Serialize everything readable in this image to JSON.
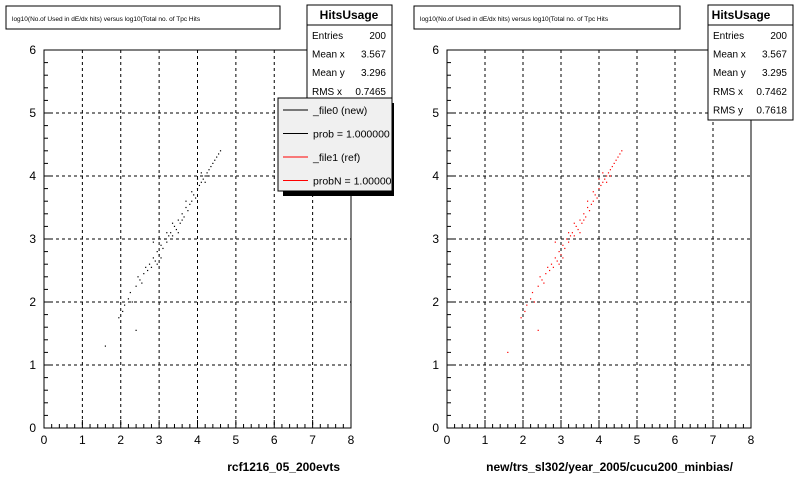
{
  "colors": {
    "series_new": "#000000",
    "series_ref": "#ff0000",
    "grid": "#000000",
    "background": "#ffffff"
  },
  "chart_data": [
    {
      "type": "scatter",
      "title": "log10(No.of Used in dE/dx hits) versus log10(Total no. of Tpc Hits",
      "xlabel": "rcf1216_05_200evts",
      "ylabel": "",
      "xlim": [
        0,
        8
      ],
      "ylim": [
        0,
        6
      ],
      "x_ticks": [
        "0",
        "1",
        "2",
        "3",
        "4",
        "5",
        "6",
        "7",
        "8"
      ],
      "y_ticks": [
        "0",
        "1",
        "2",
        "3",
        "4",
        "5",
        "6"
      ],
      "grid": true,
      "stats": {
        "name": "HitsUsage",
        "rows": [
          {
            "label": "Entries",
            "value": "200"
          },
          {
            "label": "Mean x",
            "value": "3.567"
          },
          {
            "label": "Mean y",
            "value": "3.296"
          },
          {
            "label": "RMS x",
            "value": "0.7465"
          }
        ]
      },
      "legend": {
        "placement": "top-right",
        "entries": [
          {
            "label": "_file0 (new)",
            "color": "#000000"
          },
          {
            "label": "prob = 1.000000",
            "color": "#000000"
          },
          {
            "label": "_file1 (ref)",
            "color": "#ff0000"
          },
          {
            "label": "probN = 1.000000",
            "color": "#ff0000"
          }
        ]
      },
      "series": [
        {
          "color": "#000000",
          "points": [
            [
              1.6,
              1.3
            ],
            [
              1.95,
              1.75
            ],
            [
              2.05,
              1.85
            ],
            [
              2.1,
              1.95
            ],
            [
              2.2,
              2.05
            ],
            [
              2.25,
              2.15
            ],
            [
              2.4,
              1.55
            ],
            [
              2.4,
              2.25
            ],
            [
              2.5,
              2.35
            ],
            [
              2.55,
              2.3
            ],
            [
              2.6,
              2.45
            ],
            [
              2.7,
              2.5
            ],
            [
              2.75,
              2.6
            ],
            [
              2.8,
              2.55
            ],
            [
              2.85,
              2.7
            ],
            [
              2.9,
              2.65
            ],
            [
              2.95,
              2.8
            ],
            [
              3.0,
              2.75
            ],
            [
              3.05,
              2.9
            ],
            [
              3.1,
              2.85
            ],
            [
              3.15,
              3.0
            ],
            [
              3.2,
              2.95
            ],
            [
              3.25,
              3.05
            ],
            [
              3.3,
              3.1
            ],
            [
              3.35,
              3.05
            ],
            [
              3.4,
              3.2
            ],
            [
              3.45,
              3.15
            ],
            [
              3.5,
              3.3
            ],
            [
              3.55,
              3.25
            ],
            [
              3.6,
              3.4
            ],
            [
              3.65,
              3.35
            ],
            [
              3.7,
              3.5
            ],
            [
              3.75,
              3.45
            ],
            [
              3.8,
              3.55
            ],
            [
              3.85,
              3.6
            ],
            [
              3.9,
              3.7
            ],
            [
              3.95,
              3.65
            ],
            [
              4.0,
              3.8
            ],
            [
              4.05,
              3.85
            ],
            [
              4.1,
              3.9
            ],
            [
              4.15,
              3.95
            ],
            [
              4.2,
              4.0
            ],
            [
              4.25,
              4.05
            ],
            [
              4.3,
              4.1
            ],
            [
              4.35,
              4.15
            ],
            [
              4.4,
              4.2
            ],
            [
              4.45,
              4.25
            ],
            [
              4.5,
              4.3
            ],
            [
              4.55,
              4.35
            ],
            [
              4.6,
              4.4
            ],
            [
              2.65,
              2.55
            ],
            [
              2.95,
              2.6
            ],
            [
              3.05,
              2.7
            ],
            [
              3.2,
              3.1
            ],
            [
              3.35,
              3.25
            ],
            [
              3.5,
              3.1
            ],
            [
              3.6,
              3.3
            ],
            [
              3.7,
              3.6
            ],
            [
              3.85,
              3.75
            ],
            [
              4.0,
              3.95
            ],
            [
              4.1,
              4.05
            ],
            [
              4.2,
              3.9
            ],
            [
              4.3,
              4.0
            ],
            [
              2.3,
              2.0
            ],
            [
              2.45,
              2.4
            ],
            [
              2.85,
              2.95
            ]
          ]
        }
      ]
    },
    {
      "type": "scatter",
      "title": "log10(No.of Used in dE/dx hits) versus log10(Total no. of Tpc Hits",
      "xlabel": "new/trs_sl302/year_2005/cucu200_minbias/",
      "ylabel": "",
      "xlim": [
        0,
        8
      ],
      "ylim": [
        0,
        6
      ],
      "x_ticks": [
        "0",
        "1",
        "2",
        "3",
        "4",
        "5",
        "6",
        "7",
        "8"
      ],
      "y_ticks": [
        "0",
        "1",
        "2",
        "3",
        "4",
        "5",
        "6"
      ],
      "grid": true,
      "stats": {
        "name": "HitsUsage",
        "rows": [
          {
            "label": "Entries",
            "value": "200"
          },
          {
            "label": "Mean x",
            "value": "3.567"
          },
          {
            "label": "Mean y",
            "value": "3.295"
          },
          {
            "label": "RMS x",
            "value": "0.7462"
          },
          {
            "label": "RMS y",
            "value": "0.7618"
          }
        ]
      },
      "series": [
        {
          "color": "#ff0000",
          "points": [
            [
              1.6,
              1.2
            ],
            [
              1.95,
              1.75
            ],
            [
              2.05,
              1.85
            ],
            [
              2.1,
              1.95
            ],
            [
              2.2,
              2.05
            ],
            [
              2.25,
              2.15
            ],
            [
              2.4,
              1.55
            ],
            [
              2.4,
              2.25
            ],
            [
              2.5,
              2.35
            ],
            [
              2.55,
              2.3
            ],
            [
              2.6,
              2.45
            ],
            [
              2.7,
              2.5
            ],
            [
              2.75,
              2.6
            ],
            [
              2.8,
              2.55
            ],
            [
              2.85,
              2.7
            ],
            [
              2.9,
              2.65
            ],
            [
              2.95,
              2.8
            ],
            [
              3.0,
              2.75
            ],
            [
              3.05,
              2.9
            ],
            [
              3.1,
              2.85
            ],
            [
              3.15,
              3.0
            ],
            [
              3.2,
              2.95
            ],
            [
              3.25,
              3.05
            ],
            [
              3.3,
              3.1
            ],
            [
              3.35,
              3.05
            ],
            [
              3.4,
              3.2
            ],
            [
              3.45,
              3.15
            ],
            [
              3.5,
              3.3
            ],
            [
              3.55,
              3.25
            ],
            [
              3.6,
              3.4
            ],
            [
              3.65,
              3.35
            ],
            [
              3.7,
              3.5
            ],
            [
              3.75,
              3.45
            ],
            [
              3.8,
              3.55
            ],
            [
              3.85,
              3.6
            ],
            [
              3.9,
              3.7
            ],
            [
              3.95,
              3.65
            ],
            [
              4.0,
              3.8
            ],
            [
              4.05,
              3.85
            ],
            [
              4.1,
              3.9
            ],
            [
              4.15,
              3.95
            ],
            [
              4.2,
              4.0
            ],
            [
              4.25,
              4.05
            ],
            [
              4.3,
              4.1
            ],
            [
              4.35,
              4.15
            ],
            [
              4.4,
              4.2
            ],
            [
              4.45,
              4.25
            ],
            [
              4.5,
              4.3
            ],
            [
              4.55,
              4.35
            ],
            [
              4.6,
              4.4
            ],
            [
              2.65,
              2.55
            ],
            [
              2.95,
              2.6
            ],
            [
              3.05,
              2.7
            ],
            [
              3.2,
              3.1
            ],
            [
              3.35,
              3.25
            ],
            [
              3.5,
              3.1
            ],
            [
              3.6,
              3.3
            ],
            [
              3.7,
              3.6
            ],
            [
              3.85,
              3.75
            ],
            [
              4.0,
              3.95
            ],
            [
              4.1,
              4.05
            ],
            [
              4.2,
              3.9
            ],
            [
              4.3,
              4.0
            ],
            [
              2.3,
              2.0
            ],
            [
              2.45,
              2.4
            ],
            [
              2.85,
              2.95
            ]
          ]
        }
      ]
    }
  ]
}
